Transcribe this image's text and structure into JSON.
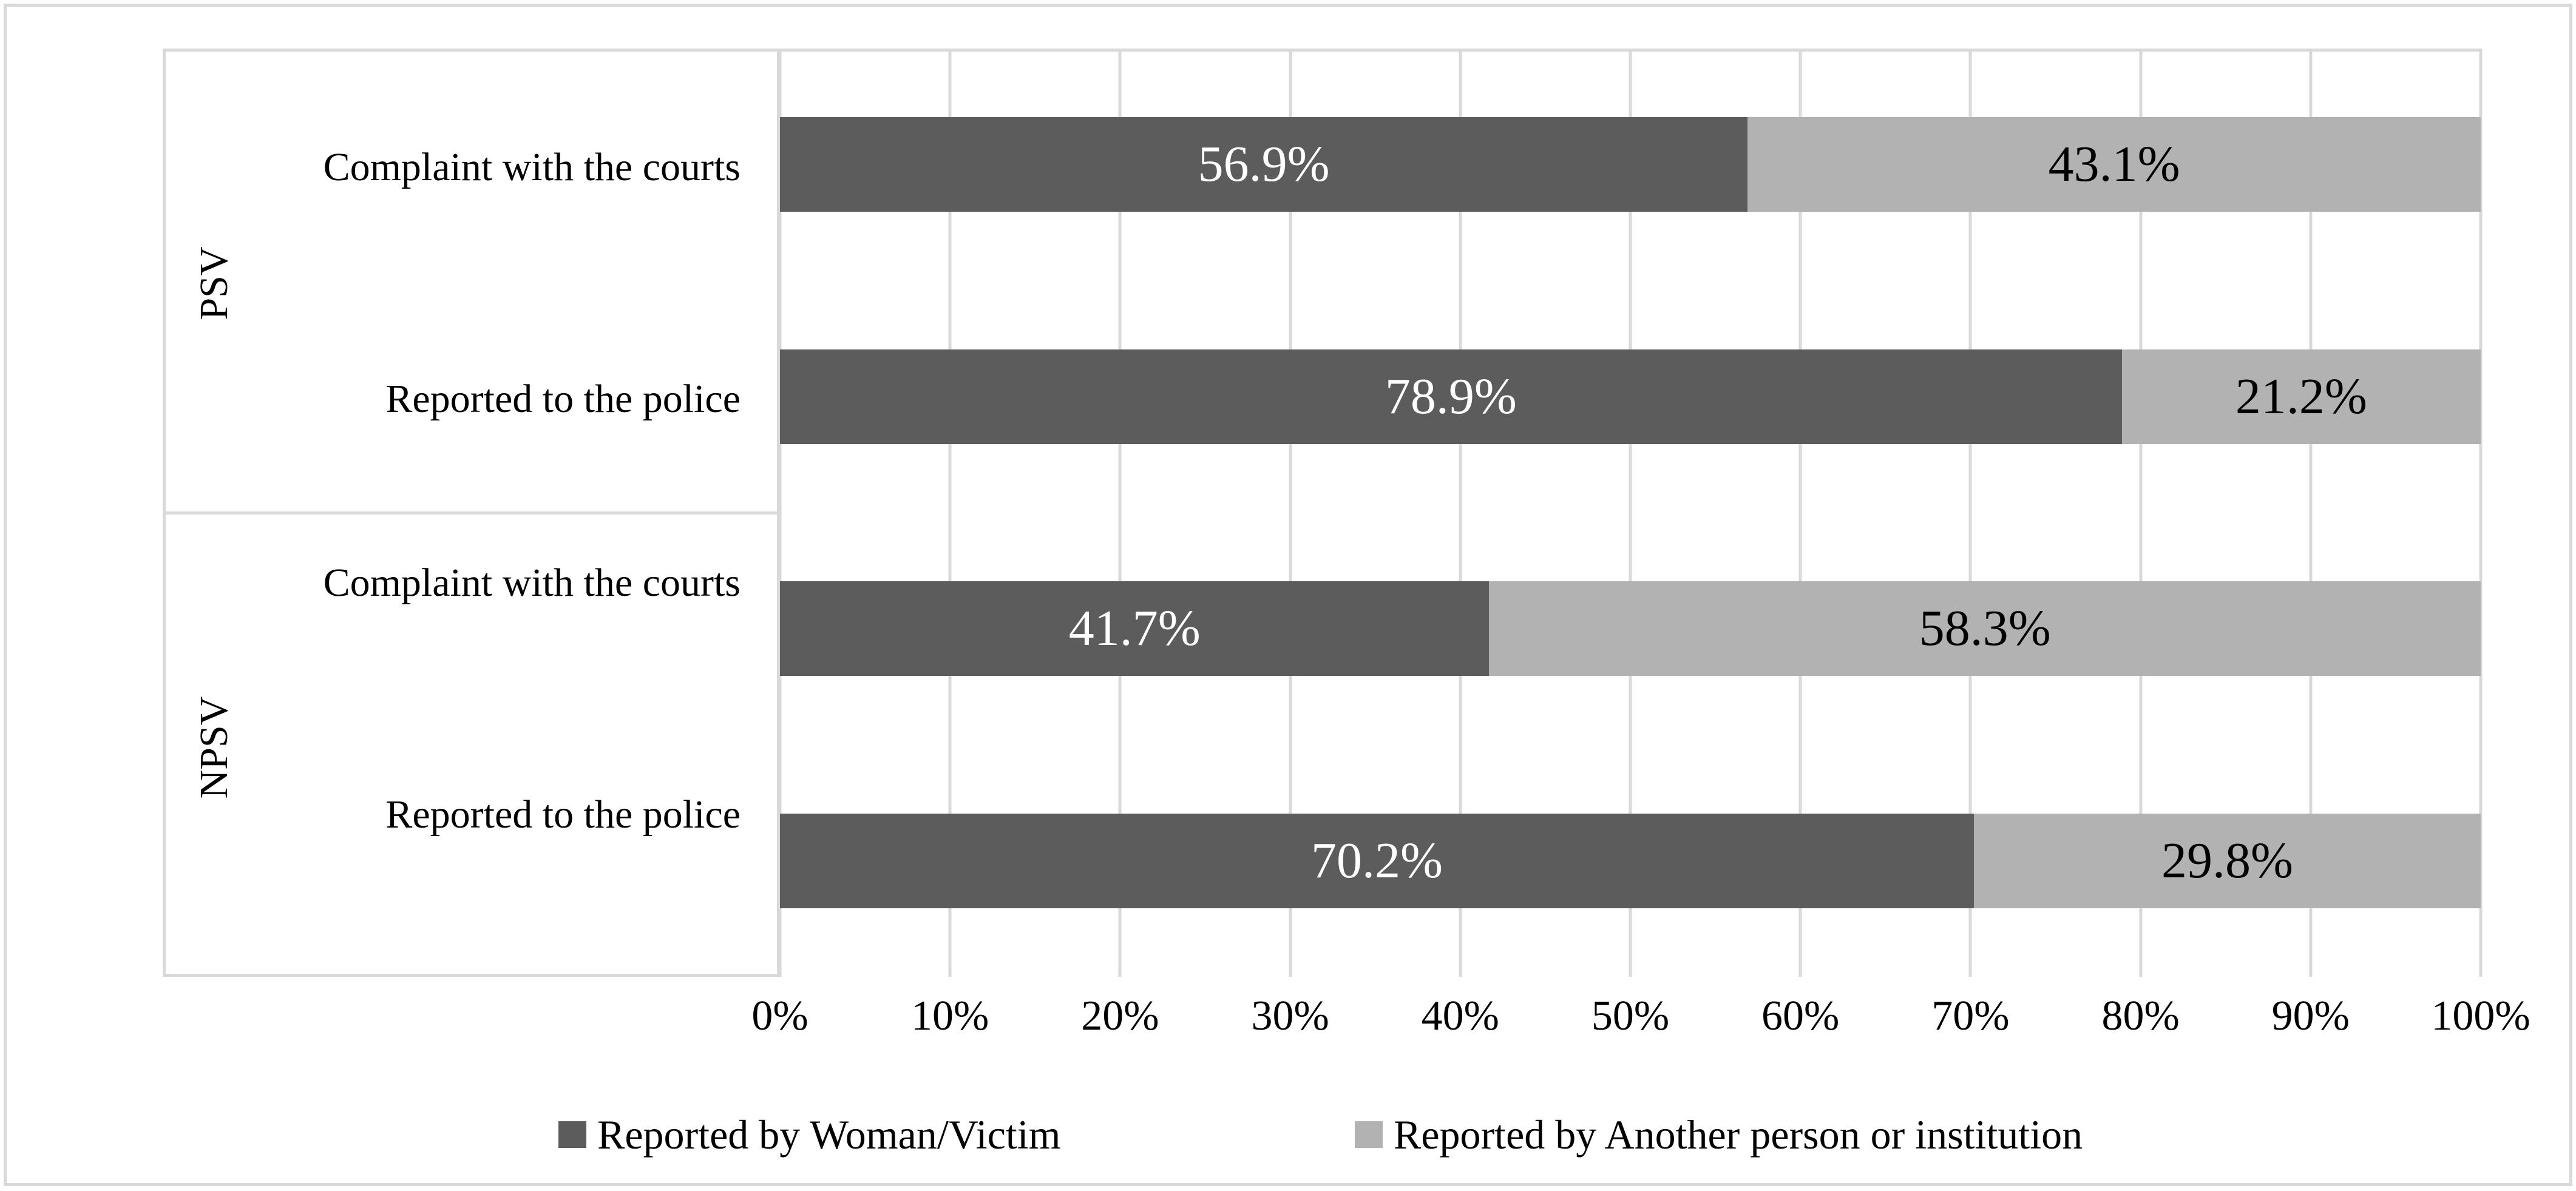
{
  "chart_data": {
    "type": "bar",
    "orientation": "horizontal",
    "stacked": true,
    "title": "",
    "xlabel": "",
    "ylabel": "",
    "x_axis": {
      "min": 0,
      "max": 100,
      "ticks": [
        "0%",
        "10%",
        "20%",
        "30%",
        "40%",
        "50%",
        "60%",
        "70%",
        "80%",
        "90%",
        "100%"
      ]
    },
    "grid": true,
    "legend_position": "bottom-center",
    "series": [
      {
        "name": "Reported by Woman/Victim",
        "color": "#5c5c5c",
        "text_color": "#ffffff"
      },
      {
        "name": "Reported by Another person or institution",
        "color": "#b2b2b2",
        "text_color": "#000000"
      }
    ],
    "groups": [
      {
        "label": "PSV",
        "rows": [
          {
            "category": "Complaint with the courts",
            "values": [
              56.9,
              43.1
            ],
            "labels": [
              "56.9%",
              "43.1%"
            ]
          },
          {
            "category": "Reported to the police",
            "values": [
              78.9,
              21.2
            ],
            "labels": [
              "78.9%",
              "21.2%"
            ]
          }
        ]
      },
      {
        "label": "NPSV",
        "rows": [
          {
            "category": "Complaint with the courts",
            "values": [
              41.7,
              58.3
            ],
            "labels": [
              "41.7%",
              "58.3%"
            ]
          },
          {
            "category": "Reported to the police",
            "values": [
              70.2,
              29.8
            ],
            "labels": [
              "70.2%",
              "29.8%"
            ]
          }
        ]
      }
    ]
  },
  "colors": {
    "background": "#ffffff",
    "grid": "#d9d9d9",
    "border": "#d9d9d9",
    "dark_series": "#5c5c5c",
    "light_series": "#b2b2b2"
  }
}
